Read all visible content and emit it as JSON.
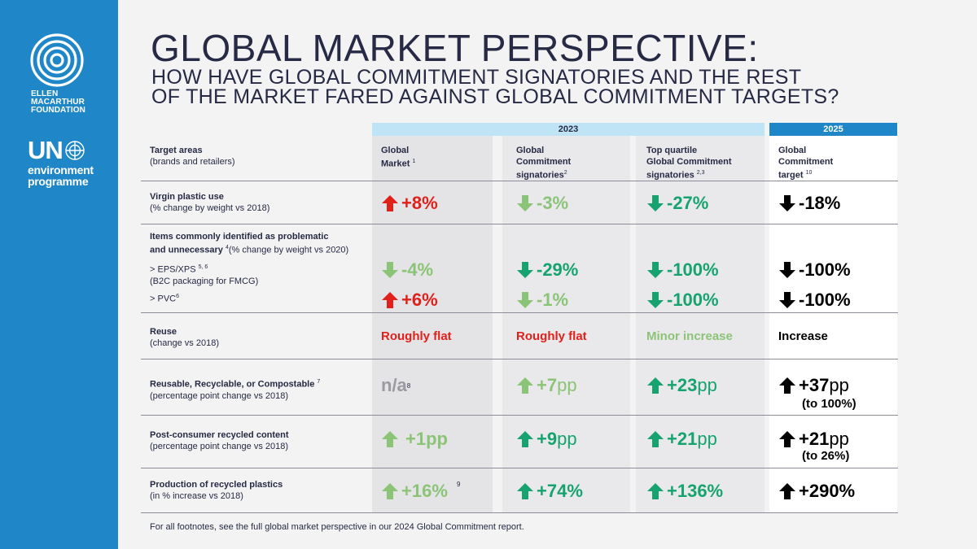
{
  "brand": {
    "emf_lines": [
      "ELLEN",
      "MACARTHUR",
      "FOUNDATION"
    ],
    "unep_abbr": "UN",
    "unep_lines": [
      "environment",
      "programme"
    ]
  },
  "title": "GLOBAL MARKET PERSPECTIVE:",
  "subtitle_lines": [
    "HOW HAVE GLOBAL COMMITMENT SIGNATORIES AND THE REST",
    "OF THE MARKET FARED AGAINST GLOBAL COMMITMENT TARGETS?"
  ],
  "year_2023": "2023",
  "year_2025": "2025",
  "headers": {
    "target_areas": "Target areas",
    "target_areas_sub": "(brands and retailers)",
    "global_market_l1": "Global",
    "global_market_l2": "Market",
    "global_market_fn": "1",
    "gc_l1": "Global",
    "gc_l2": "Commitment",
    "gc_l3": "signatories",
    "gc_fn": "2",
    "tq_l1": "Top quartile",
    "tq_l2": "Global Commitment",
    "tq_l3": "signatories",
    "tq_fn": "2,3",
    "tgt_l1": "Global",
    "tgt_l2": "Commitment",
    "tgt_l3": "target",
    "tgt_fn": "10"
  },
  "rows": {
    "virgin": {
      "title": "Virgin plastic use",
      "sub": "(% change by weight vs 2018)"
    },
    "problematic": {
      "title_l1": "Items commonly identified as problematic",
      "title_l2": "and unnecessary",
      "fn": "4",
      "title_l2_rest": "(% change by weight vs 2020)",
      "eps": "> EPS/XPS",
      "eps_fn": "5, 6",
      "eps_sub": "(B2C packaging for FMCG)",
      "pvc": "> PVC",
      "pvc_fn": "6"
    },
    "reuse": {
      "title": "Reuse",
      "sub": "(change vs 2018)"
    },
    "rrc": {
      "title": "Reusable, Recyclable, or Compostable",
      "fn": "7",
      "sub": "(percentage point change vs 2018)"
    },
    "pcr": {
      "title": "Post-consumer recycled content",
      "sub": "(percentage point change vs 2018)"
    },
    "prod": {
      "title": "Production of recycled plastics",
      "sub": "(in % increase vs 2018)"
    }
  },
  "values": {
    "virgin": [
      "+8%",
      "-3%",
      "-27%",
      "-18%"
    ],
    "eps": [
      "-4%",
      "-29%",
      "-100%",
      "-100%"
    ],
    "pvc": [
      "+6%",
      "-1%",
      "-100%",
      "-100%"
    ],
    "reuse": [
      "Roughly flat",
      "Roughly flat",
      "Minor increase",
      "Increase"
    ],
    "rrc_na": "n/a",
    "rrc_na_fn": "8",
    "rrc_num": [
      "+7",
      "+23",
      "+37"
    ],
    "rrc_unit": "pp",
    "rrc_target_note": "(to 100%)",
    "pcr_num": [
      "+1",
      "+9",
      "+21",
      "+21"
    ],
    "pcr_unit": "pp",
    "pcr_target_note": "(to 26%)",
    "prod": [
      "+16%",
      "+74%",
      "+136%",
      "+290%"
    ],
    "prod_fn": "9"
  },
  "footnote": "For all footnotes, see the full global market perspective in our 2024 Global Commitment report.",
  "colors": {
    "sidebar": "#1f87c8",
    "red": "#e0201b",
    "light_green": "#8cc477",
    "green": "#17a36f",
    "black": "#000000",
    "year_2023_band": "#bfe4f6",
    "year_2025_band": "#1f87c8"
  },
  "icons": {
    "up": "arrow-up-icon",
    "down": "arrow-down-icon"
  }
}
